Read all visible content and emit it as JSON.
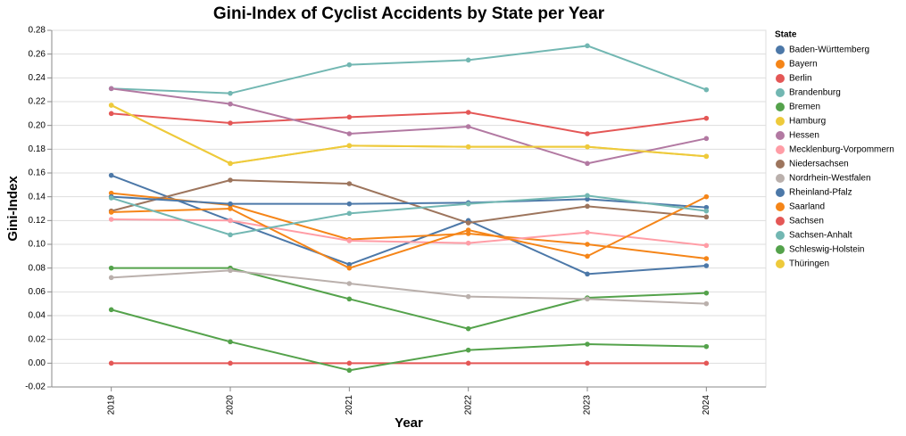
{
  "chart_data": {
    "type": "line",
    "title": "Gini-Index of Cyclist Accidents by State per Year",
    "x_label": "Year",
    "y_label": "Gini-Index",
    "legend_title": "State",
    "categories": [
      "2019",
      "2020",
      "2021",
      "2022",
      "2023",
      "2024"
    ],
    "ylim": [
      -0.02,
      0.28
    ],
    "yticks": [
      -0.02,
      {
        "value": 0,
        "label": "0.00"
      },
      0.02,
      0.04,
      0.06,
      0.08,
      {
        "value": 0.1,
        "label": "0.10"
      },
      0.12,
      0.14,
      0.16,
      0.18,
      {
        "value": 0.2,
        "label": "0.20"
      },
      0.22,
      0.24,
      0.26,
      0.28
    ],
    "grid": true,
    "legend": "right",
    "series": [
      {
        "name": "Baden-Württemberg",
        "color": "#4c78a8",
        "values": [
          0.158,
          0.12,
          0.083,
          0.12,
          0.075,
          0.082
        ]
      },
      {
        "name": "Bayern",
        "color": "#f58518",
        "values": [
          0.143,
          0.133,
          0.104,
          0.109,
          0.1,
          0.088
        ]
      },
      {
        "name": "Berlin",
        "color": "#e45756",
        "values": [
          0.21,
          0.202,
          0.207,
          0.211,
          0.193,
          0.206
        ]
      },
      {
        "name": "Brandenburg",
        "color": "#72b7b2",
        "values": [
          0.231,
          0.227,
          0.251,
          0.255,
          0.267,
          0.23
        ]
      },
      {
        "name": "Bremen",
        "color": "#54a24b",
        "values": [
          0.08,
          0.08,
          0.054,
          0.029,
          0.055,
          0.059
        ]
      },
      {
        "name": "Hamburg",
        "color": "#eeca3b",
        "values": [
          0.217,
          0.168,
          0.183,
          0.182,
          0.182,
          0.174
        ]
      },
      {
        "name": "Hessen",
        "color": "#b279a2",
        "values": [
          0.231,
          0.218,
          0.193,
          0.199,
          0.168,
          0.189
        ]
      },
      {
        "name": "Mecklenburg-Vorpommern",
        "color": "#ff9da6",
        "values": [
          0.121,
          0.12,
          0.103,
          0.101,
          0.11,
          0.099
        ]
      },
      {
        "name": "Niedersachsen",
        "color": "#9d755d",
        "values": [
          0.128,
          0.154,
          0.151,
          0.118,
          0.132,
          0.123
        ]
      },
      {
        "name": "Nordrhein-Westfalen",
        "color": "#bab0ac",
        "values": [
          0.072,
          0.078,
          0.067,
          0.056,
          0.054,
          0.05
        ]
      },
      {
        "name": "Rheinland-Pfalz",
        "color": "#4c78a8",
        "values": [
          0.14,
          0.134,
          0.134,
          0.135,
          0.138,
          0.131
        ]
      },
      {
        "name": "Saarland",
        "color": "#f58518",
        "values": [
          0.127,
          0.13,
          0.08,
          0.112,
          0.09,
          0.14
        ]
      },
      {
        "name": "Sachsen",
        "color": "#e45756",
        "values": [
          0,
          0,
          0,
          0,
          0,
          0
        ]
      },
      {
        "name": "Sachsen-Anhalt",
        "color": "#72b7b2",
        "values": [
          0.139,
          0.108,
          0.126,
          0.134,
          0.141,
          0.128
        ]
      },
      {
        "name": "Schleswig-Holstein",
        "color": "#54a24b",
        "values": [
          0.045,
          0.018,
          -0.006,
          0.011,
          0.016,
          0.014
        ]
      },
      {
        "name": "Thüringen",
        "color": "#eeca3b",
        "values": [
          0.217,
          0.168,
          0.183,
          0.182,
          0.182,
          0.174
        ]
      }
    ]
  }
}
